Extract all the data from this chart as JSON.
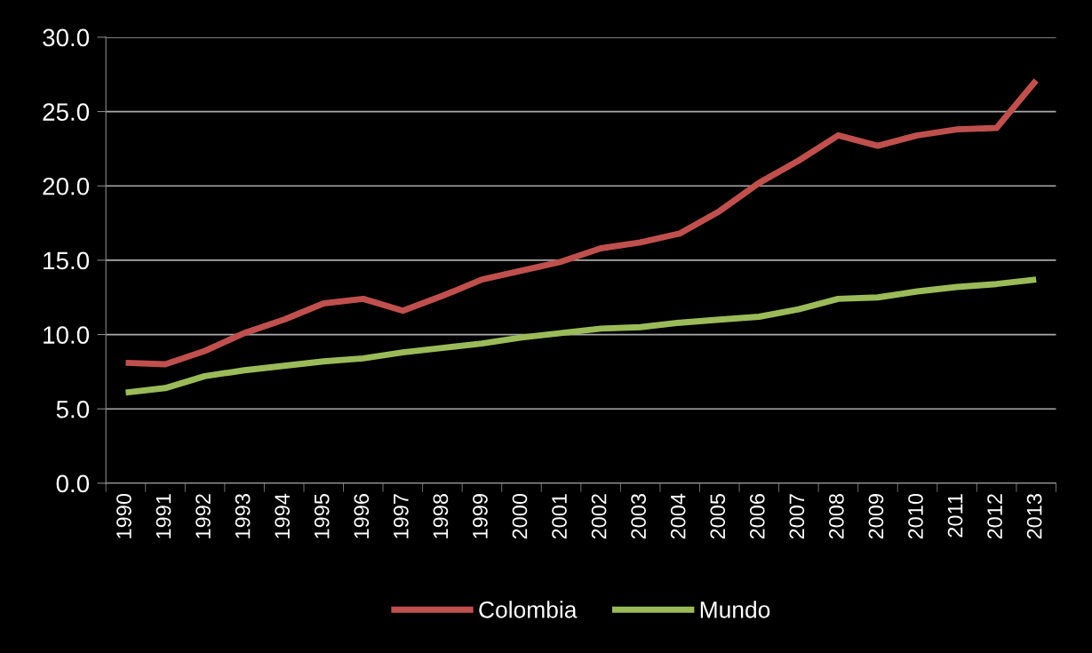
{
  "chart_data": {
    "type": "line",
    "categories": [
      "1990",
      "1991",
      "1992",
      "1993",
      "1994",
      "1995",
      "1996",
      "1997",
      "1998",
      "1999",
      "2000",
      "2001",
      "2002",
      "2003",
      "2004",
      "2005",
      "2006",
      "2007",
      "2008",
      "2009",
      "2010",
      "2011",
      "2012",
      "2013"
    ],
    "series": [
      {
        "name": "Colombia",
        "color": "#c0504d",
        "values": [
          8.1,
          8.0,
          8.9,
          10.1,
          11.0,
          12.1,
          12.4,
          11.6,
          12.6,
          13.7,
          14.3,
          14.9,
          15.8,
          16.2,
          16.8,
          18.3,
          20.2,
          21.7,
          23.4,
          22.7,
          23.4,
          23.8,
          23.9,
          27.1
        ]
      },
      {
        "name": "Mundo",
        "color": "#9bbb59",
        "values": [
          6.1,
          6.4,
          7.2,
          7.6,
          7.9,
          8.2,
          8.4,
          8.8,
          9.1,
          9.4,
          9.8,
          10.1,
          10.4,
          10.5,
          10.8,
          11.0,
          11.2,
          11.7,
          12.4,
          12.5,
          12.9,
          13.2,
          13.4,
          13.7
        ]
      }
    ],
    "ylim": [
      0,
      30
    ],
    "yticks": [
      {
        "value": 0,
        "label": "0.0"
      },
      {
        "value": 5,
        "label": "5.0"
      },
      {
        "value": 10,
        "label": "10.0"
      },
      {
        "value": 15,
        "label": "15.0"
      },
      {
        "value": 20,
        "label": "20.0"
      },
      {
        "value": 25,
        "label": "25.0"
      },
      {
        "value": 30,
        "label": "30.0"
      }
    ],
    "grid": "y",
    "legend": "bottom",
    "marker": "none",
    "line_style": "solid"
  }
}
